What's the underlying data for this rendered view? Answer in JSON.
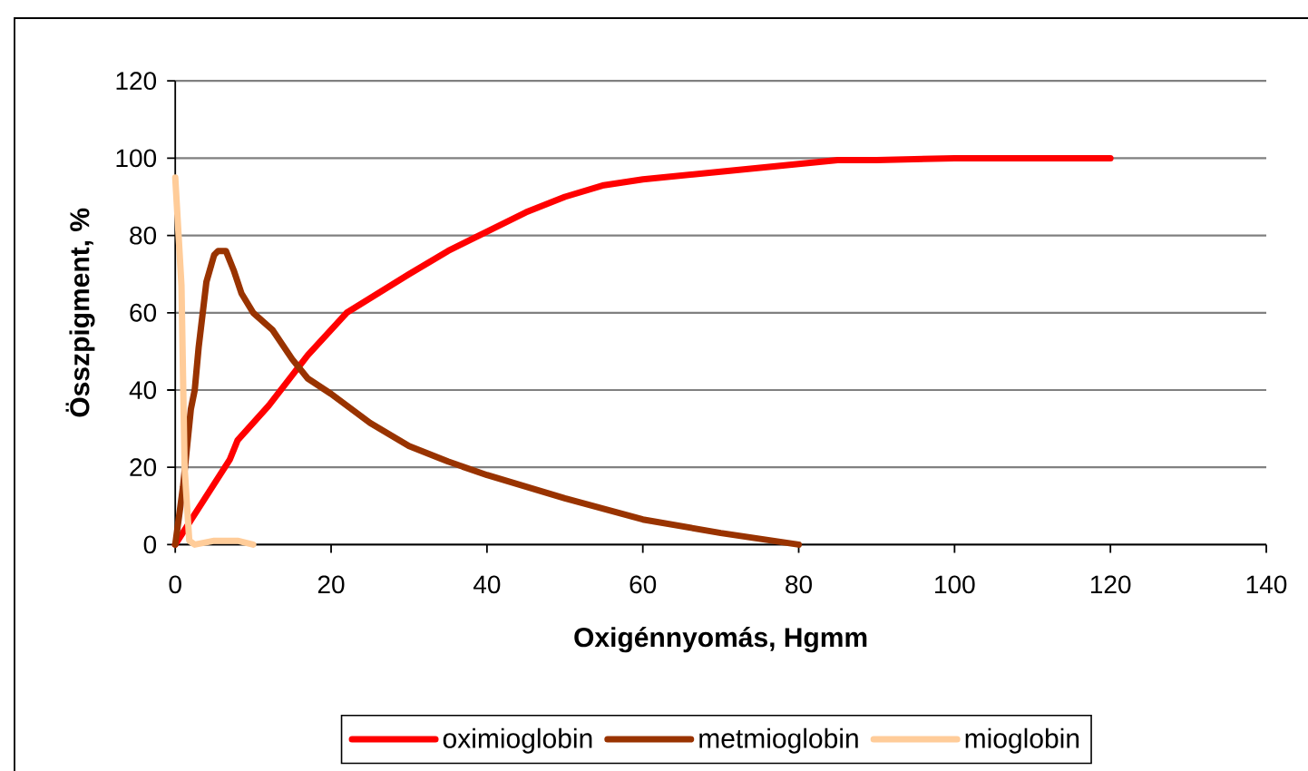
{
  "chart_data": {
    "type": "line",
    "xlabel": "Oxigénnyomás, Hgmm",
    "ylabel": "Összpigment, %",
    "xlim": [
      0,
      140
    ],
    "ylim": [
      0,
      120
    ],
    "xticks": [
      0,
      20,
      40,
      60,
      80,
      100,
      120,
      140
    ],
    "yticks": [
      0,
      20,
      40,
      60,
      80,
      100,
      120
    ],
    "grid": "y",
    "legend": "bottom",
    "marker": "none",
    "line_style": "solid",
    "series": [
      {
        "name": "oximioglobin",
        "color": "#ff0000",
        "x": [
          0,
          7,
          8,
          12,
          17,
          22,
          26,
          30,
          35,
          40,
          45,
          50,
          55,
          60,
          70,
          80,
          85,
          90,
          100,
          120
        ],
        "values": [
          0,
          22,
          27,
          36,
          49,
          60,
          65,
          70,
          76,
          81,
          86,
          90,
          93,
          94.5,
          96.5,
          98.5,
          99.5,
          99.5,
          100,
          100
        ]
      },
      {
        "name": "metmioglobin",
        "color": "#993300",
        "x": [
          0,
          1,
          2,
          2.5,
          3,
          4,
          5,
          5.5,
          6.5,
          7.5,
          8.5,
          10,
          12.5,
          15,
          17,
          20,
          25,
          30,
          35,
          40,
          50,
          60,
          70,
          80
        ],
        "values": [
          0,
          15,
          35,
          40,
          51,
          68,
          75,
          76,
          76,
          71,
          65,
          60,
          55.5,
          48,
          43,
          39,
          31.5,
          25.5,
          21.5,
          18,
          12,
          6.5,
          3,
          0
        ]
      },
      {
        "name": "mioglobin",
        "color": "#ffcc99",
        "x": [
          0,
          0.8,
          1.2,
          1.8,
          2.5,
          5,
          8,
          10
        ],
        "values": [
          95,
          67,
          20,
          1,
          0,
          1,
          1,
          0
        ]
      }
    ]
  }
}
